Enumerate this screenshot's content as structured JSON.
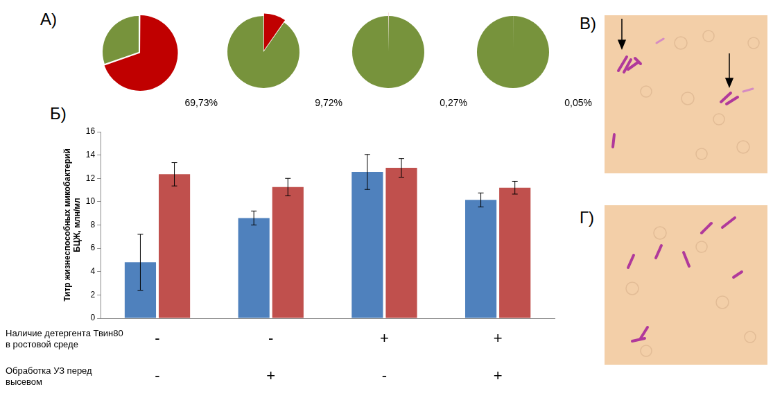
{
  "panel_labels": [
    "А)",
    "Б)",
    "В)",
    "Г)"
  ],
  "chart_data": [
    {
      "type": "pie",
      "values": [
        69.73,
        30.27
      ],
      "value_labels": [
        "69,73%",
        null
      ],
      "colors": [
        "#c00000",
        "#77933c"
      ],
      "data_labels": true
    },
    {
      "type": "pie",
      "values": [
        9.72,
        90.28
      ],
      "value_labels": [
        "9,72%",
        null
      ],
      "colors": [
        "#c00000",
        "#77933c"
      ],
      "data_labels": true
    },
    {
      "type": "pie",
      "values": [
        0.27,
        99.73
      ],
      "value_labels": [
        "0,27%",
        null
      ],
      "colors": [
        "#c00000",
        "#77933c"
      ],
      "data_labels": true
    },
    {
      "type": "pie",
      "values": [
        0.05,
        99.95
      ],
      "value_labels": [
        "0,05%",
        null
      ],
      "colors": [
        "#c00000",
        "#77933c"
      ],
      "data_labels": true
    },
    {
      "type": "bar",
      "y_label": "Титр жизнеспособных микобактерий БЦЖ, млн/мл",
      "categories": [
        [
          "-",
          "-"
        ],
        [
          "-",
          "+"
        ],
        [
          "+",
          "-"
        ],
        [
          "+",
          "+"
        ]
      ],
      "category_rows": [
        "Наличие детергента Твин80 в ростовой среде",
        "Обработка УЗ перед высевом"
      ],
      "ylim": [
        0,
        16
      ],
      "yticks": [
        0,
        2,
        4,
        6,
        8,
        10,
        12,
        14,
        16
      ],
      "grid": false,
      "series": [
        {
          "color": "#4f81bd",
          "values": [
            4.8,
            8.6,
            12.55,
            10.15
          ],
          "errors": [
            2.4,
            0.6,
            1.5,
            0.6
          ]
        },
        {
          "color": "#c0504d",
          "values": [
            12.35,
            11.25,
            12.9,
            11.2
          ],
          "errors": [
            1.0,
            0.75,
            0.8,
            0.55
          ]
        }
      ]
    }
  ]
}
